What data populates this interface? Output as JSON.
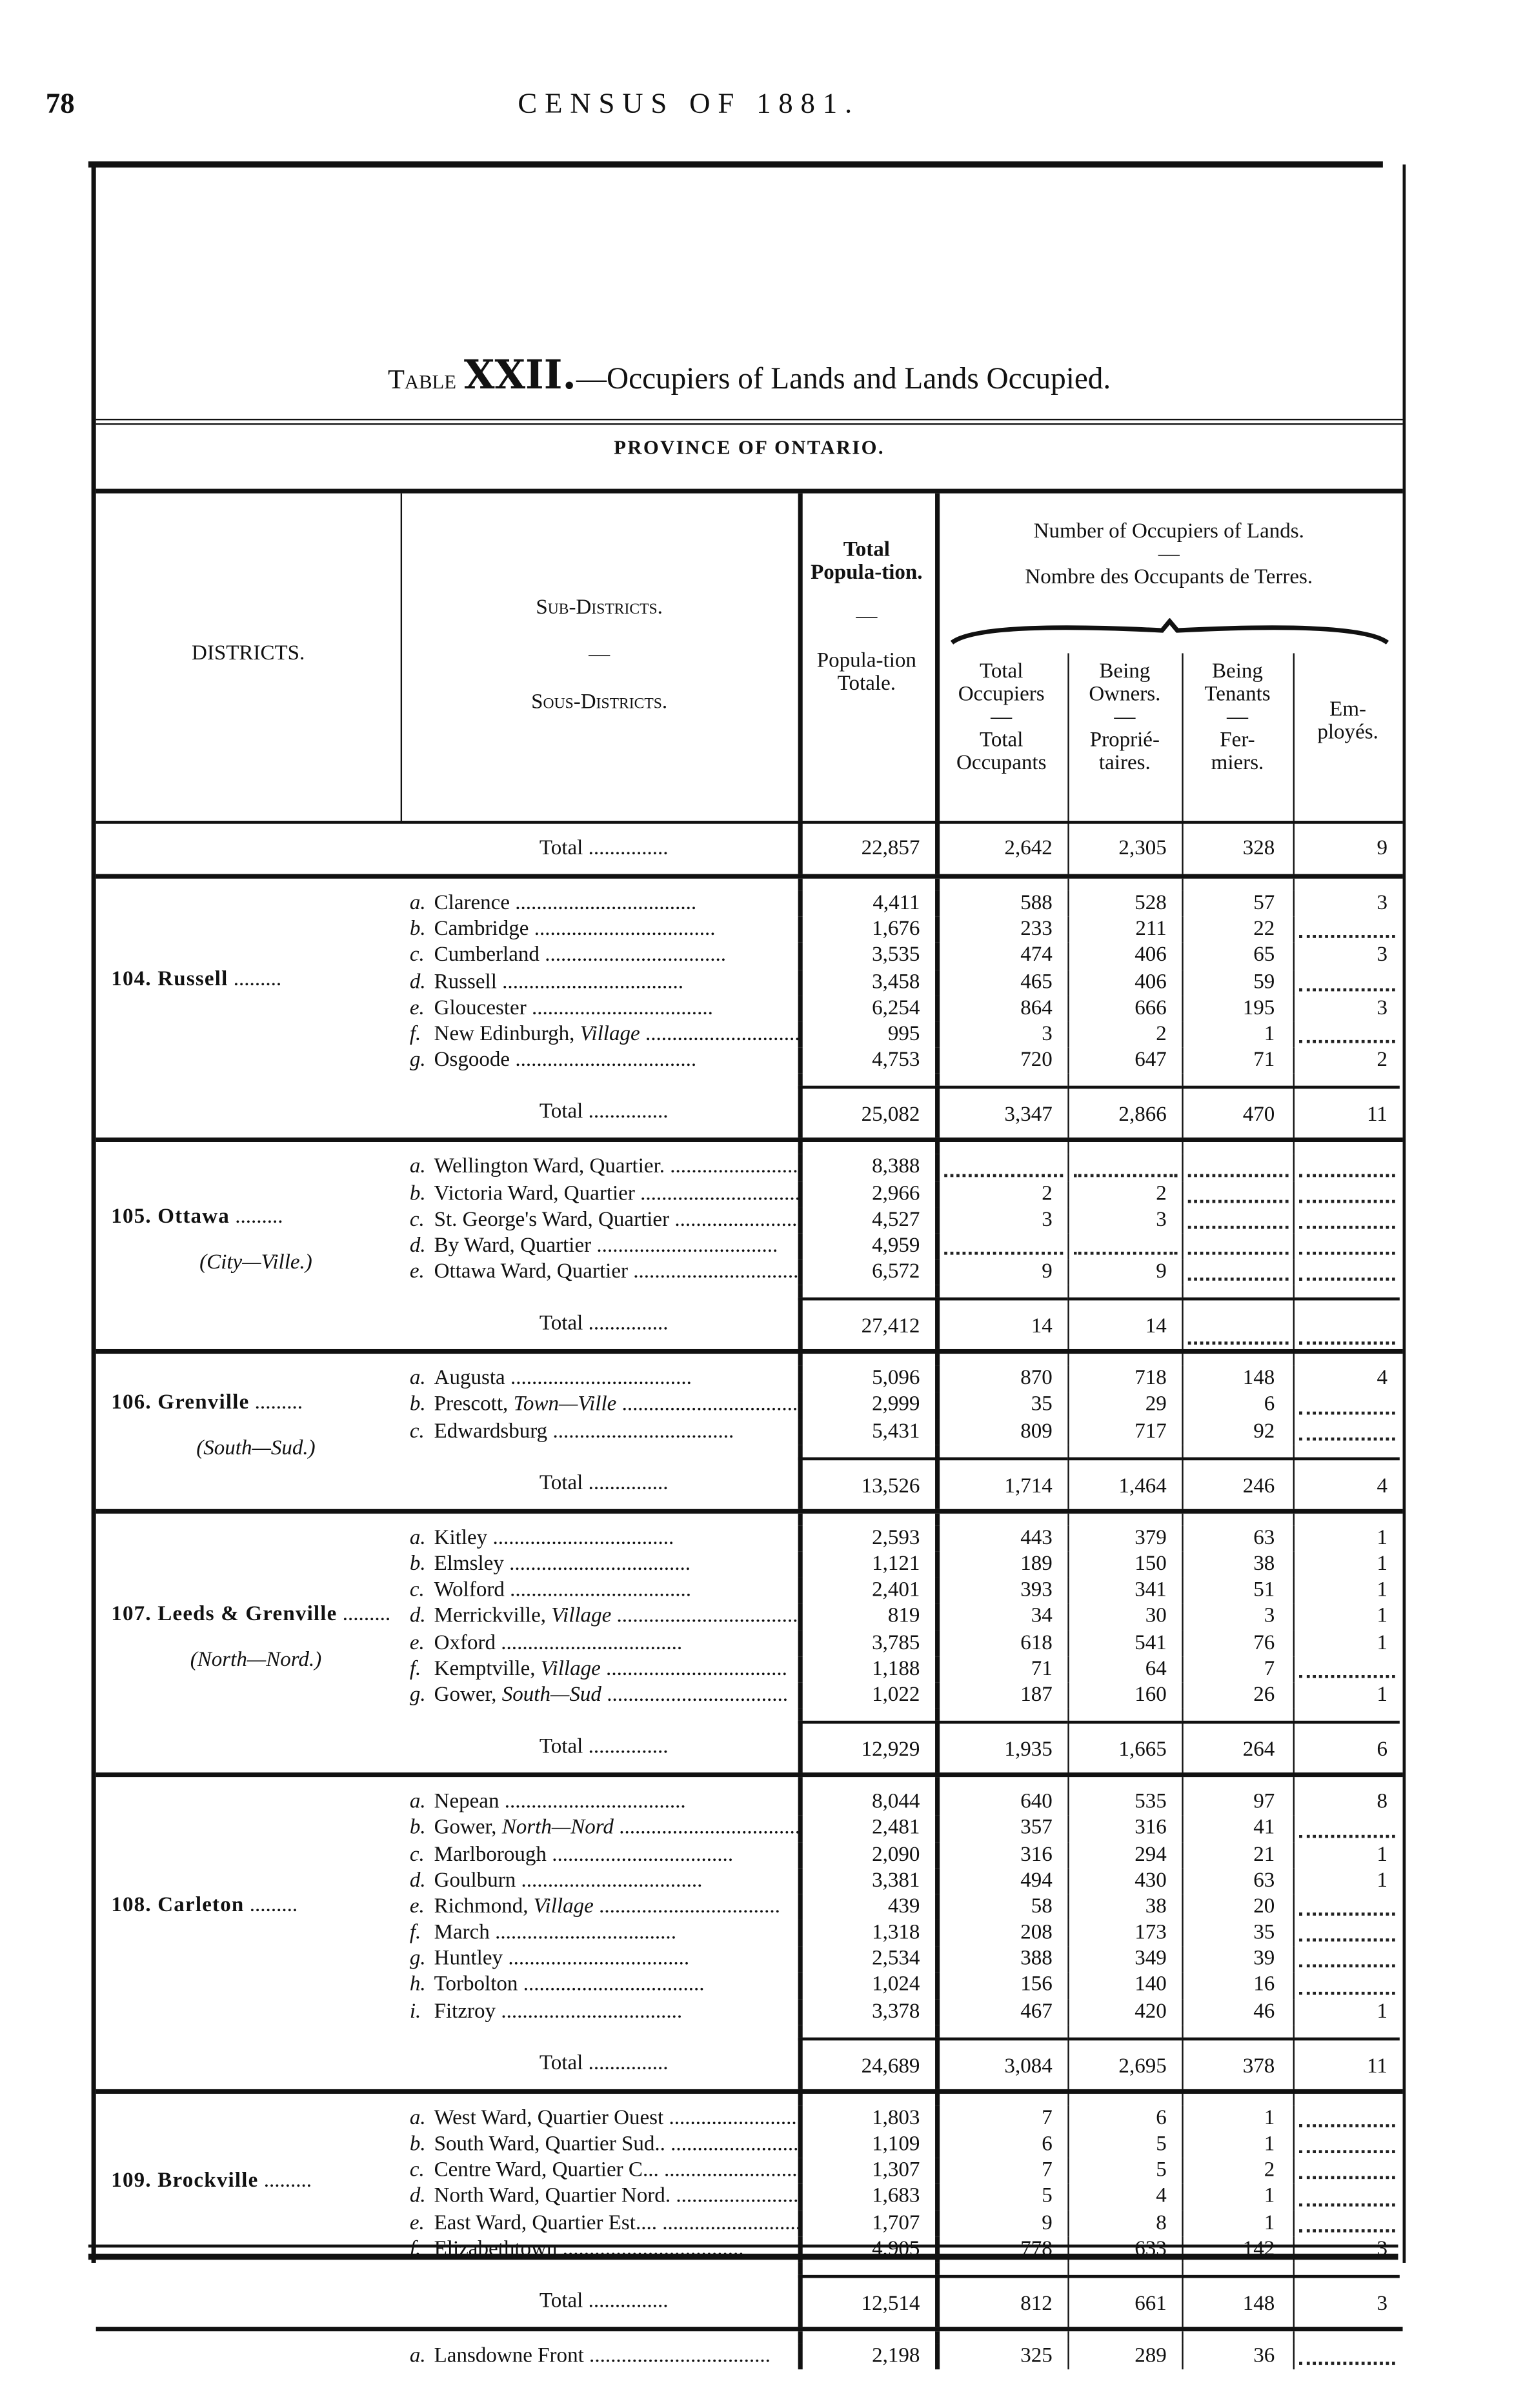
{
  "page": {
    "number": "78",
    "running_title": "CENSUS OF 1881."
  },
  "table": {
    "label": "Table",
    "numeral": "XXII.",
    "title": "—Occupiers of Lands and Lands Occupied.",
    "province": "PROVINCE OF ONTARIO.",
    "headers": {
      "districts": "DISTRICTS.",
      "sub_districts": "Sub-Districts.",
      "dash": "—",
      "sous_districts": "Sous-Districts.",
      "population_en": "Total Popula-tion.",
      "population_fr": "Popula-tion Totale.",
      "occupiers_en": "Number of Occupiers of Lands.",
      "occupiers_fr": "Nombre des Occupants de Terres.",
      "total_en": "Total Occupiers",
      "total_fr": "Total Occupants",
      "owners_en": "Being Owners.",
      "owners_fr": "Proprié-taires.",
      "tenants_en": "Being Tenants",
      "tenants_fr": "Fer-miers.",
      "employes": "Em-ployés."
    },
    "total_label": "Total",
    "prev_total": {
      "population": "22,857",
      "occupiers": "2,642",
      "owners": "2,305",
      "tenants": "328",
      "employes": "9"
    },
    "groups": [
      {
        "district": "104. Russell",
        "sub": "",
        "rows": [
          {
            "letter": "a.",
            "name": "Clarence",
            "italic": "",
            "population": "4,411",
            "occupiers": "588",
            "owners": "528",
            "tenants": "57",
            "employes": "3"
          },
          {
            "letter": "b.",
            "name": "Cambridge",
            "italic": "",
            "population": "1,676",
            "occupiers": "233",
            "owners": "211",
            "tenants": "22",
            "employes": ""
          },
          {
            "letter": "c.",
            "name": "Cumberland",
            "italic": "",
            "population": "3,535",
            "occupiers": "474",
            "owners": "406",
            "tenants": "65",
            "employes": "3"
          },
          {
            "letter": "d.",
            "name": "Russell",
            "italic": "",
            "population": "3,458",
            "occupiers": "465",
            "owners": "406",
            "tenants": "59",
            "employes": ""
          },
          {
            "letter": "e.",
            "name": "Gloucester",
            "italic": "",
            "population": "6,254",
            "occupiers": "864",
            "owners": "666",
            "tenants": "195",
            "employes": "3"
          },
          {
            "letter": "f.",
            "name": "New Edinburgh, ",
            "italic": "Village",
            "population": "995",
            "occupiers": "3",
            "owners": "2",
            "tenants": "1",
            "employes": ""
          },
          {
            "letter": "g.",
            "name": "Osgoode",
            "italic": "",
            "population": "4,753",
            "occupiers": "720",
            "owners": "647",
            "tenants": "71",
            "employes": "2"
          }
        ],
        "total": {
          "population": "25,082",
          "occupiers": "3,347",
          "owners": "2,866",
          "tenants": "470",
          "employes": "11"
        }
      },
      {
        "district": "105. Ottawa",
        "sub": "(City—Ville.)",
        "rows": [
          {
            "letter": "a.",
            "name": "Wellington Ward, Quartier.",
            "italic": "",
            "population": "8,388",
            "occupiers": "",
            "owners": "",
            "tenants": "",
            "employes": ""
          },
          {
            "letter": "b.",
            "name": "Victoria Ward, Quartier",
            "italic": "",
            "population": "2,966",
            "occupiers": "2",
            "owners": "2",
            "tenants": "",
            "employes": ""
          },
          {
            "letter": "c.",
            "name": "St. George's Ward, Quartier",
            "italic": "",
            "population": "4,527",
            "occupiers": "3",
            "owners": "3",
            "tenants": "",
            "employes": ""
          },
          {
            "letter": "d.",
            "name": "By Ward, Quartier",
            "italic": "",
            "population": "4,959",
            "occupiers": "",
            "owners": "",
            "tenants": "",
            "employes": ""
          },
          {
            "letter": "e.",
            "name": "Ottawa Ward, Quartier",
            "italic": "",
            "population": "6,572",
            "occupiers": "9",
            "owners": "9",
            "tenants": "",
            "employes": ""
          }
        ],
        "total": {
          "population": "27,412",
          "occupiers": "14",
          "owners": "14",
          "tenants": "",
          "employes": ""
        }
      },
      {
        "district": "106. Grenville",
        "sub": "(South—Sud.)",
        "rows": [
          {
            "letter": "a.",
            "name": "Augusta",
            "italic": "",
            "population": "5,096",
            "occupiers": "870",
            "owners": "718",
            "tenants": "148",
            "employes": "4"
          },
          {
            "letter": "b.",
            "name": "Prescott, ",
            "italic": "Town—Ville",
            "population": "2,999",
            "occupiers": "35",
            "owners": "29",
            "tenants": "6",
            "employes": ""
          },
          {
            "letter": "c.",
            "name": "Edwardsburg",
            "italic": "",
            "population": "5,431",
            "occupiers": "809",
            "owners": "717",
            "tenants": "92",
            "employes": ""
          }
        ],
        "total": {
          "population": "13,526",
          "occupiers": "1,714",
          "owners": "1,464",
          "tenants": "246",
          "employes": "4"
        }
      },
      {
        "district": "107. Leeds & Grenville",
        "sub": "(North—Nord.)",
        "rows": [
          {
            "letter": "a.",
            "name": "Kitley",
            "italic": "",
            "population": "2,593",
            "occupiers": "443",
            "owners": "379",
            "tenants": "63",
            "employes": "1"
          },
          {
            "letter": "b.",
            "name": "Elmsley",
            "italic": "",
            "population": "1,121",
            "occupiers": "189",
            "owners": "150",
            "tenants": "38",
            "employes": "1"
          },
          {
            "letter": "c.",
            "name": "Wolford",
            "italic": "",
            "population": "2,401",
            "occupiers": "393",
            "owners": "341",
            "tenants": "51",
            "employes": "1"
          },
          {
            "letter": "d.",
            "name": "Merrickville, ",
            "italic": "Village",
            "population": "819",
            "occupiers": "34",
            "owners": "30",
            "tenants": "3",
            "employes": "1"
          },
          {
            "letter": "e.",
            "name": "Oxford",
            "italic": "",
            "population": "3,785",
            "occupiers": "618",
            "owners": "541",
            "tenants": "76",
            "employes": "1"
          },
          {
            "letter": "f.",
            "name": "Kemptville, ",
            "italic": "Village",
            "population": "1,188",
            "occupiers": "71",
            "owners": "64",
            "tenants": "7",
            "employes": ""
          },
          {
            "letter": "g.",
            "name": "Gower, ",
            "italic": "South—Sud",
            "population": "1,022",
            "occupiers": "187",
            "owners": "160",
            "tenants": "26",
            "employes": "1"
          }
        ],
        "total": {
          "population": "12,929",
          "occupiers": "1,935",
          "owners": "1,665",
          "tenants": "264",
          "employes": "6"
        }
      },
      {
        "district": "108. Carleton",
        "sub": "",
        "rows": [
          {
            "letter": "a.",
            "name": "Nepean",
            "italic": "",
            "population": "8,044",
            "occupiers": "640",
            "owners": "535",
            "tenants": "97",
            "employes": "8"
          },
          {
            "letter": "b.",
            "name": "Gower, ",
            "italic": "North—Nord",
            "population": "2,481",
            "occupiers": "357",
            "owners": "316",
            "tenants": "41",
            "employes": ""
          },
          {
            "letter": "c.",
            "name": "Marlborough",
            "italic": "",
            "population": "2,090",
            "occupiers": "316",
            "owners": "294",
            "tenants": "21",
            "employes": "1"
          },
          {
            "letter": "d.",
            "name": "Goulburn",
            "italic": "",
            "population": "3,381",
            "occupiers": "494",
            "owners": "430",
            "tenants": "63",
            "employes": "1"
          },
          {
            "letter": "e.",
            "name": "Richmond, ",
            "italic": "Village",
            "population": "439",
            "occupiers": "58",
            "owners": "38",
            "tenants": "20",
            "employes": ""
          },
          {
            "letter": "f.",
            "name": "March",
            "italic": "",
            "population": "1,318",
            "occupiers": "208",
            "owners": "173",
            "tenants": "35",
            "employes": ""
          },
          {
            "letter": "g.",
            "name": "Huntley",
            "italic": "",
            "population": "2,534",
            "occupiers": "388",
            "owners": "349",
            "tenants": "39",
            "employes": ""
          },
          {
            "letter": "h.",
            "name": "Torbolton",
            "italic": "",
            "population": "1,024",
            "occupiers": "156",
            "owners": "140",
            "tenants": "16",
            "employes": ""
          },
          {
            "letter": "i.",
            "name": "Fitzroy",
            "italic": "",
            "population": "3,378",
            "occupiers": "467",
            "owners": "420",
            "tenants": "46",
            "employes": "1"
          }
        ],
        "total": {
          "population": "24,689",
          "occupiers": "3,084",
          "owners": "2,695",
          "tenants": "378",
          "employes": "11"
        }
      },
      {
        "district": "109. Brockville",
        "sub": "",
        "rows": [
          {
            "letter": "a.",
            "name": "West Ward, Quartier Ouest",
            "italic": "",
            "population": "1,803",
            "occupiers": "7",
            "owners": "6",
            "tenants": "1",
            "employes": ""
          },
          {
            "letter": "b.",
            "name": "South Ward, Quartier Sud..",
            "italic": "",
            "population": "1,109",
            "occupiers": "6",
            "owners": "5",
            "tenants": "1",
            "employes": ""
          },
          {
            "letter": "c.",
            "name": "Centre Ward, Quartier C...",
            "italic": "",
            "population": "1,307",
            "occupiers": "7",
            "owners": "5",
            "tenants": "2",
            "employes": ""
          },
          {
            "letter": "d.",
            "name": "North Ward, Quartier Nord.",
            "italic": "",
            "population": "1,683",
            "occupiers": "5",
            "owners": "4",
            "tenants": "1",
            "employes": ""
          },
          {
            "letter": "e.",
            "name": "East Ward, Quartier Est....",
            "italic": "",
            "population": "1,707",
            "occupiers": "9",
            "owners": "8",
            "tenants": "1",
            "employes": ""
          },
          {
            "letter": "f.",
            "name": "Elizabethtown",
            "italic": "",
            "population": "4,905",
            "occupiers": "778",
            "owners": "633",
            "tenants": "142",
            "employes": "3"
          }
        ],
        "total": {
          "population": "12,514",
          "occupiers": "812",
          "owners": "661",
          "tenants": "148",
          "employes": "3"
        }
      }
    ],
    "last_row": {
      "letter": "a.",
      "name": "Lansdowne Front",
      "italic": "",
      "population": "2,198",
      "occupiers": "325",
      "owners": "289",
      "tenants": "36",
      "employes": ""
    }
  }
}
